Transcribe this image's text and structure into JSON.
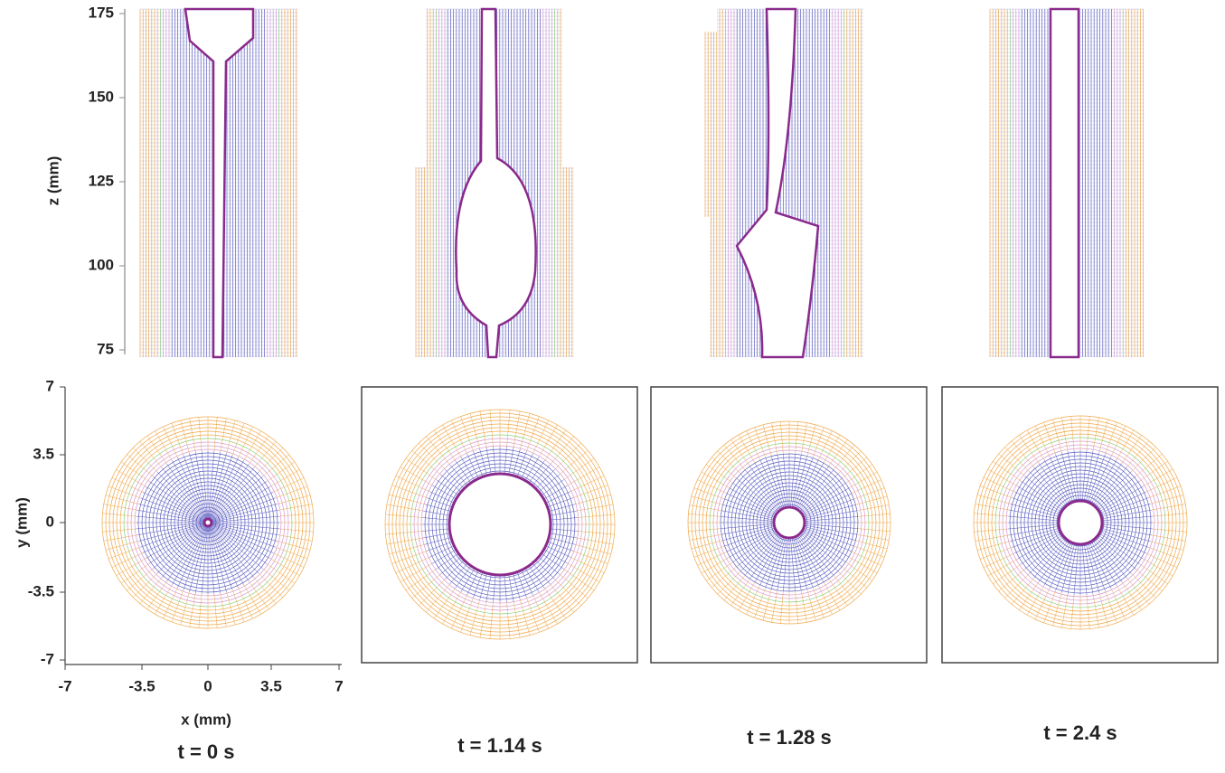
{
  "top_axis": {
    "label": "z (mm)",
    "ticks": [
      "175",
      "150",
      "125",
      "100",
      "75"
    ]
  },
  "bottom_axis": {
    "y_label": "y (mm)",
    "y_ticks": [
      "7",
      "3.5",
      "0",
      "-3.5",
      "-7"
    ],
    "x_label": "x (mm)",
    "x_ticks": [
      "-7",
      "-3.5",
      "0",
      "3.5",
      "7"
    ]
  },
  "panels": [
    {
      "time": "t = 0 s"
    },
    {
      "time": "t = 1.14 s"
    },
    {
      "time": "t = 1.28 s"
    },
    {
      "time": "t = 2.4 s"
    }
  ]
}
